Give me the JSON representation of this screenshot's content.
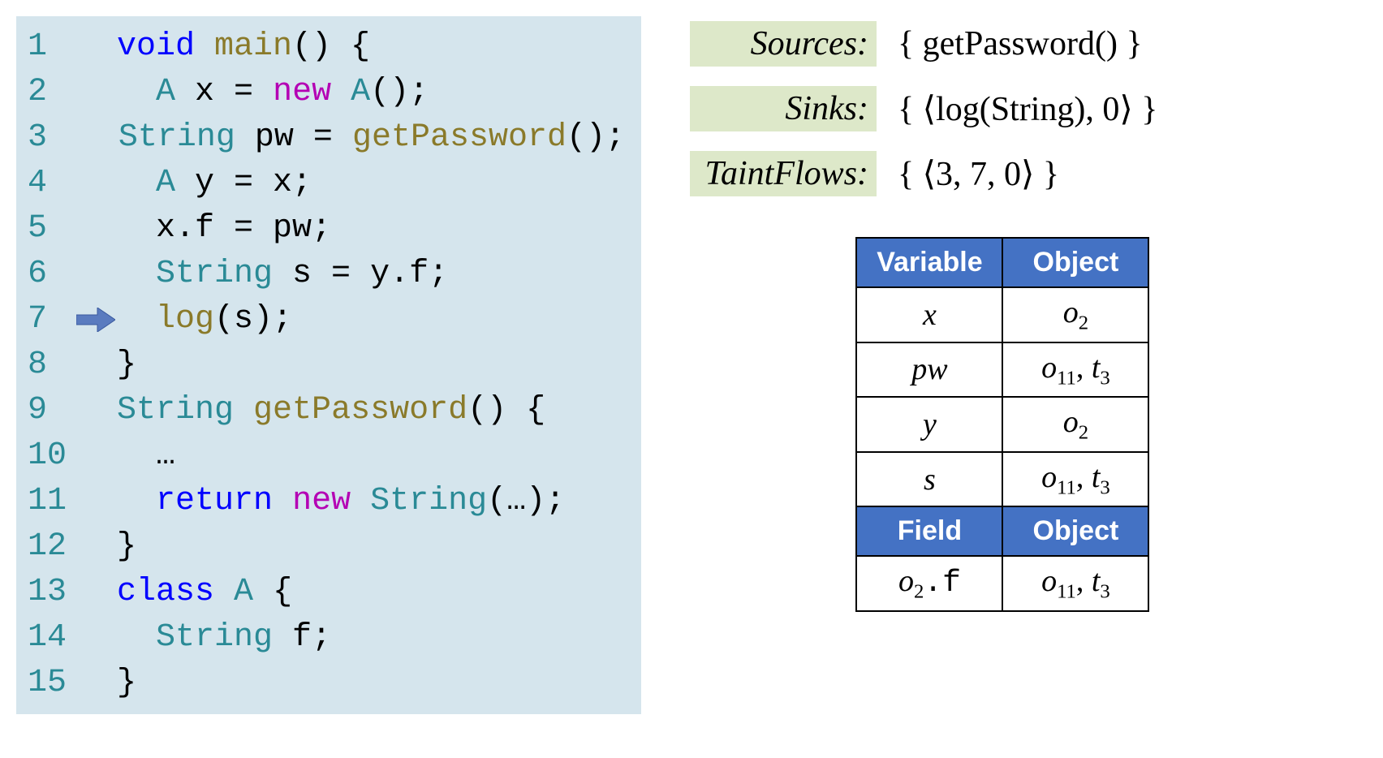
{
  "code": {
    "background_color": "#d5e5ed",
    "font_family": "Consolas",
    "font_size": 40,
    "line_number_color": "#2a8a96",
    "keyword_color": "#0000ff",
    "type_color": "#2a8a96",
    "function_color": "#8a7a2a",
    "new_color": "#b400b4",
    "highlighted_line": 7,
    "arrow_color": "#5a7bbf",
    "lines": [
      {
        "n": 1,
        "tokens": [
          [
            "kw",
            "void"
          ],
          [
            "plain",
            " "
          ],
          [
            "func",
            "main"
          ],
          [
            "plain",
            "() {"
          ]
        ]
      },
      {
        "n": 2,
        "tokens": [
          [
            "plain",
            "  "
          ],
          [
            "type",
            "A"
          ],
          [
            "plain",
            " x = "
          ],
          [
            "newkw",
            "new"
          ],
          [
            "plain",
            " "
          ],
          [
            "type",
            "A"
          ],
          [
            "plain",
            "();"
          ]
        ]
      },
      {
        "n": 3,
        "tokens": [
          [
            "plain",
            "  "
          ],
          [
            "type",
            "String"
          ],
          [
            "plain",
            " pw = "
          ],
          [
            "func",
            "getPassword"
          ],
          [
            "plain",
            "();"
          ]
        ]
      },
      {
        "n": 4,
        "tokens": [
          [
            "plain",
            "  "
          ],
          [
            "type",
            "A"
          ],
          [
            "plain",
            " y = x;"
          ]
        ]
      },
      {
        "n": 5,
        "tokens": [
          [
            "plain",
            "  x.f = pw;"
          ]
        ]
      },
      {
        "n": 6,
        "tokens": [
          [
            "plain",
            "  "
          ],
          [
            "type",
            "String"
          ],
          [
            "plain",
            " s = y.f;"
          ]
        ]
      },
      {
        "n": 7,
        "tokens": [
          [
            "plain",
            "  "
          ],
          [
            "func",
            "log"
          ],
          [
            "plain",
            "(s);"
          ]
        ]
      },
      {
        "n": 8,
        "tokens": [
          [
            "plain",
            "}"
          ]
        ]
      },
      {
        "n": 9,
        "tokens": [
          [
            "type",
            "String"
          ],
          [
            "plain",
            " "
          ],
          [
            "func",
            "getPassword"
          ],
          [
            "plain",
            "() {"
          ]
        ]
      },
      {
        "n": 10,
        "tokens": [
          [
            "plain",
            "  …"
          ]
        ]
      },
      {
        "n": 11,
        "tokens": [
          [
            "plain",
            "  "
          ],
          [
            "kw",
            "return"
          ],
          [
            "plain",
            " "
          ],
          [
            "newkw",
            "new"
          ],
          [
            "plain",
            " "
          ],
          [
            "type",
            "String"
          ],
          [
            "plain",
            "(…);"
          ]
        ]
      },
      {
        "n": 12,
        "tokens": [
          [
            "plain",
            "}"
          ]
        ]
      },
      {
        "n": 13,
        "tokens": [
          [
            "kw",
            "class"
          ],
          [
            "plain",
            " "
          ],
          [
            "type",
            "A"
          ],
          [
            "plain",
            " {"
          ]
        ]
      },
      {
        "n": 14,
        "tokens": [
          [
            "plain",
            "  "
          ],
          [
            "type",
            "String"
          ],
          [
            "plain",
            " f;"
          ]
        ]
      },
      {
        "n": 15,
        "tokens": [
          [
            "plain",
            "}"
          ]
        ]
      }
    ]
  },
  "definitions": {
    "label_background": "#dde8c9",
    "rows": [
      {
        "label": "Sources:",
        "value": "{ getPassword() }"
      },
      {
        "label": "Sinks:",
        "value": "{ ⟨log(String), 0⟩ }"
      },
      {
        "label": "TaintFlows:",
        "value": "{ ⟨3, 7, 0⟩ }"
      }
    ]
  },
  "table": {
    "header_bg": "#4472c4",
    "header_fg": "#ffffff",
    "border_color": "#000000",
    "sections": [
      {
        "headers": [
          "Variable",
          "Object"
        ],
        "rows": [
          [
            {
              "base": "x"
            },
            {
              "base": "o",
              "sub": "2"
            }
          ],
          [
            {
              "base": "pw"
            },
            {
              "base": "o",
              "sub": "11",
              "after": ", ",
              "base2": "t",
              "sub2": "3"
            }
          ],
          [
            {
              "base": "y"
            },
            {
              "base": "o",
              "sub": "2"
            }
          ],
          [
            {
              "base": "s"
            },
            {
              "base": "o",
              "sub": "11",
              "after": ", ",
              "base2": "t",
              "sub2": "3"
            }
          ]
        ]
      },
      {
        "headers": [
          "Field",
          "Object"
        ],
        "rows": [
          [
            {
              "base": "o",
              "sub": "2",
              "mono": ".f"
            },
            {
              "base": "o",
              "sub": "11",
              "after": ", ",
              "base2": "t",
              "sub2": "3"
            }
          ]
        ]
      }
    ]
  }
}
